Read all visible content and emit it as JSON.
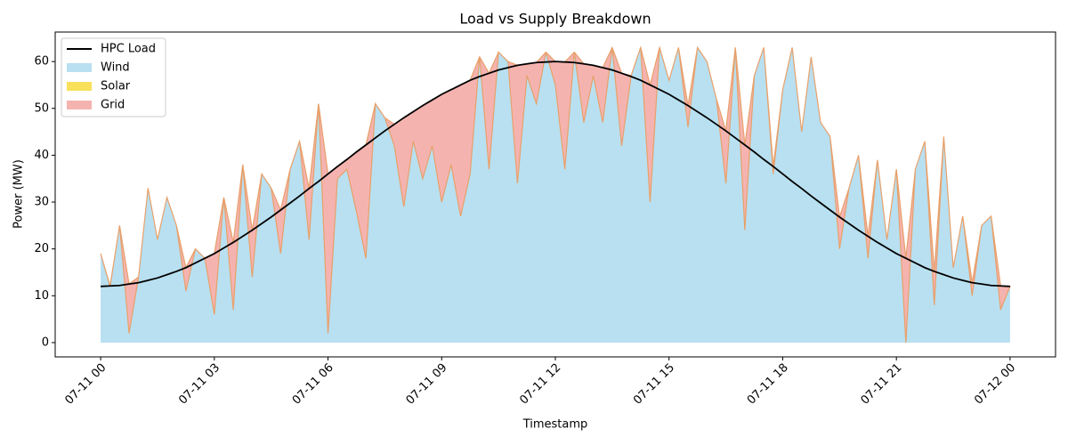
{
  "chart_data": {
    "type": "stacked-area-line",
    "title": "Load vs Supply Breakdown",
    "x_label": "Timestamp",
    "y_label": "Power (MW)",
    "x": [
      0,
      0.25,
      0.5,
      0.75,
      1,
      1.25,
      1.5,
      1.75,
      2,
      2.25,
      2.5,
      2.75,
      3,
      3.25,
      3.5,
      3.75,
      4,
      4.25,
      4.5,
      4.75,
      5,
      5.25,
      5.5,
      5.75,
      6,
      6.25,
      6.5,
      6.75,
      7,
      7.25,
      7.5,
      7.75,
      8,
      8.25,
      8.5,
      8.75,
      9,
      9.25,
      9.5,
      9.75,
      10,
      10.25,
      10.5,
      10.75,
      11,
      11.25,
      11.5,
      11.75,
      12,
      12.25,
      12.5,
      12.75,
      13,
      13.25,
      13.5,
      13.75,
      14,
      14.25,
      14.5,
      14.75,
      15,
      15.25,
      15.5,
      15.75,
      16,
      16.25,
      16.5,
      16.75,
      17,
      17.25,
      17.5,
      17.75,
      18,
      18.25,
      18.5,
      18.75,
      19,
      19.25,
      19.5,
      19.75,
      20,
      20.25,
      20.5,
      20.75,
      21,
      21.25,
      21.5,
      21.75,
      22,
      22.25,
      22.5,
      22.75,
      23,
      23.25,
      23.5,
      23.75,
      24
    ],
    "series": [
      {
        "name": "HPC Load",
        "kind": "line",
        "color": "#000000",
        "values": [
          12.0,
          12.1,
          12.2,
          12.5,
          12.8,
          13.3,
          13.8,
          14.5,
          15.2,
          16.0,
          17.0,
          18.0,
          19.0,
          20.2,
          21.4,
          22.7,
          24.0,
          25.4,
          26.8,
          28.3,
          29.8,
          31.3,
          32.9,
          34.4,
          36.0,
          37.6,
          39.1,
          40.7,
          42.2,
          43.7,
          45.2,
          46.6,
          48.0,
          49.3,
          50.6,
          51.8,
          53.0,
          54.0,
          55.0,
          56.0,
          56.8,
          57.5,
          58.2,
          58.7,
          59.2,
          59.5,
          59.8,
          59.9,
          60.0,
          59.9,
          59.8,
          59.5,
          59.2,
          58.7,
          58.2,
          57.5,
          56.8,
          56.0,
          55.0,
          54.0,
          53.0,
          51.8,
          50.6,
          49.3,
          48.0,
          46.6,
          45.2,
          43.7,
          42.2,
          40.7,
          39.1,
          37.6,
          36.0,
          34.4,
          32.9,
          31.3,
          29.8,
          28.3,
          26.8,
          25.4,
          24.0,
          22.7,
          21.4,
          20.2,
          19.0,
          18.0,
          17.0,
          16.0,
          15.2,
          14.5,
          13.8,
          13.3,
          12.8,
          12.5,
          12.2,
          12.1,
          12.0
        ]
      },
      {
        "name": "Wind",
        "kind": "area",
        "color": "#b8e0f1",
        "values": [
          19,
          12,
          25,
          2,
          14,
          33,
          22,
          31,
          25,
          11,
          20,
          18,
          6,
          31,
          7,
          38,
          14,
          36,
          33,
          19,
          37,
          43,
          22,
          51,
          2,
          35,
          37,
          28,
          18,
          51,
          48,
          42,
          29,
          43,
          35,
          42,
          30,
          38,
          27,
          36,
          61,
          37,
          62,
          60,
          34,
          57,
          51,
          62,
          55,
          37,
          62,
          47,
          57,
          47,
          63,
          42,
          57,
          63,
          30,
          63,
          56,
          63,
          46,
          63,
          60,
          52,
          34,
          63,
          24,
          57,
          63,
          36,
          54,
          63,
          45,
          61,
          47,
          44,
          20,
          33,
          40,
          18,
          39,
          22,
          37,
          0,
          37,
          43,
          8,
          44,
          16,
          27,
          10,
          25,
          27,
          7,
          12
        ]
      },
      {
        "name": "Solar",
        "kind": "area",
        "color": "#f9e05a",
        "values": [
          0,
          0,
          0,
          0,
          0,
          0,
          0,
          0,
          0,
          0,
          0,
          0,
          0,
          0,
          0,
          0,
          0,
          0,
          0,
          0,
          0,
          0,
          0,
          0,
          0,
          0,
          0,
          0,
          0,
          0,
          0,
          0,
          0,
          0,
          0,
          0,
          0,
          0,
          0,
          0,
          0,
          0,
          0,
          0,
          0,
          0,
          0,
          0,
          0,
          0,
          0,
          0,
          0,
          0,
          0,
          0,
          0,
          0,
          0,
          0,
          0,
          0,
          0,
          0,
          0,
          0,
          0,
          0,
          0,
          0,
          0,
          0,
          0,
          0,
          0,
          0,
          0,
          0,
          0,
          0,
          0,
          0,
          0,
          0,
          0,
          0,
          0,
          0,
          0,
          0,
          0,
          0,
          0,
          0,
          0,
          0,
          0
        ]
      },
      {
        "name": "Grid",
        "kind": "area",
        "color": "#f5b3b0",
        "values": [
          0,
          0.1,
          0,
          10.5,
          0,
          0,
          0,
          0,
          0,
          5.0,
          0,
          0,
          13.0,
          0,
          14.4,
          0,
          10.0,
          0,
          0,
          9.3,
          0,
          0,
          10.9,
          0,
          34.0,
          2.6,
          2.1,
          12.7,
          24.2,
          0,
          0,
          4.6,
          19.0,
          6.3,
          15.6,
          9.8,
          23.0,
          16.0,
          28.0,
          20.0,
          0,
          20.5,
          0,
          0,
          25.2,
          2.5,
          8.8,
          0,
          5.0,
          22.9,
          0,
          12.5,
          2.2,
          11.7,
          0,
          15.5,
          0,
          0,
          25.0,
          0,
          0,
          0,
          4.6,
          0,
          0,
          0,
          11.2,
          0,
          18.2,
          0,
          0,
          1.6,
          0,
          0,
          0,
          0,
          0,
          0,
          6.8,
          0,
          0,
          4.7,
          0,
          0,
          0,
          18.0,
          0,
          0,
          7.2,
          0,
          0,
          0,
          2.8,
          0,
          0,
          5.1,
          0
        ]
      }
    ],
    "xlim": [
      -1.2,
      25.2
    ],
    "xticks": [
      {
        "value": 0,
        "label": "07-11 00"
      },
      {
        "value": 3,
        "label": "07-11 03"
      },
      {
        "value": 6,
        "label": "07-11 06"
      },
      {
        "value": 9,
        "label": "07-11 09"
      },
      {
        "value": 12,
        "label": "07-11 12"
      },
      {
        "value": 15,
        "label": "07-11 15"
      },
      {
        "value": 18,
        "label": "07-11 18"
      },
      {
        "value": 21,
        "label": "07-11 21"
      },
      {
        "value": 24,
        "label": "07-12 00"
      }
    ],
    "ylim": [
      -3.05,
      66.3
    ],
    "yticks": [
      0,
      10,
      20,
      30,
      40,
      50,
      60
    ],
    "legend": "upper left",
    "grid": false
  }
}
